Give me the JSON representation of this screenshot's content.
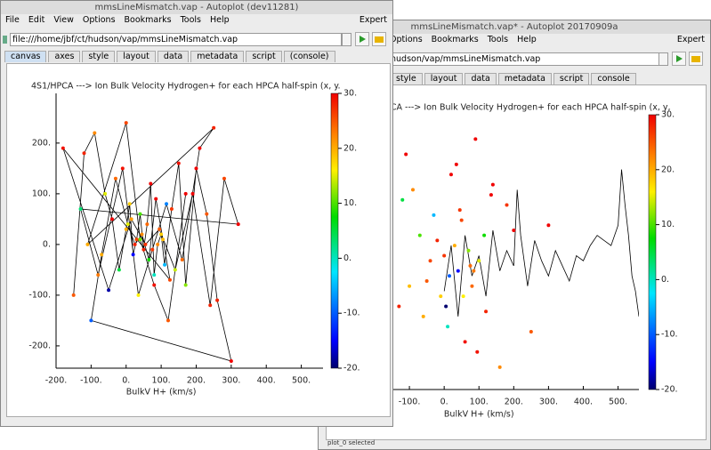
{
  "windows": [
    {
      "title": "mmsLineMismatch.vap* - Autoplot 20170909a",
      "menus": [
        "Options",
        "Bookmarks",
        "Tools",
        "Help"
      ],
      "expert": "Expert",
      "url": "hudson/vap/mmsLineMismatch.vap",
      "tabs": [
        "style",
        "layout",
        "data",
        "metadata",
        "script",
        "console"
      ],
      "status": "plot_0 selected"
    },
    {
      "title": "mmsLineMismatch.vap - Autoplot (dev11281)",
      "menus": [
        "File",
        "Edit",
        "View",
        "Options",
        "Bookmarks",
        "Tools",
        "Help"
      ],
      "expert": "Expert",
      "url": "file:///home/jbf/ct/hudson/vap/mmsLineMismatch.vap",
      "tabs": [
        "canvas",
        "axes",
        "style",
        "layout",
        "data",
        "metadata",
        "script",
        "(console)"
      ]
    }
  ],
  "chart_data": [
    {
      "type": "scatter",
      "connect": false,
      "title": "HPCA  ---> Ion Bulk Velocity Hydrogen+ for each HPCA half-spin (x, y,",
      "xlabel": "BulkV H+ (km/s)",
      "x": [
        -130,
        -110,
        -90,
        -70,
        -50,
        -30,
        -10,
        0,
        10,
        20,
        30,
        40,
        50,
        60,
        70,
        80,
        90,
        100,
        120,
        140,
        160,
        180,
        200,
        250,
        300,
        -120,
        -60,
        -20,
        15,
        35,
        55,
        75,
        95,
        115,
        135,
        -100,
        -40,
        5,
        45,
        85
      ],
      "values": [
        -80,
        220,
        150,
        60,
        -30,
        100,
        -60,
        20,
        -120,
        180,
        40,
        -10,
        90,
        -150,
        30,
        -40,
        250,
        10,
        -90,
        160,
        -200,
        120,
        70,
        -130,
        80,
        130,
        -100,
        50,
        -20,
        200,
        -60,
        0,
        -170,
        60,
        140,
        -40,
        10,
        -80,
        110,
        -10
      ],
      "z": [
        28,
        30,
        22,
        10,
        25,
        -5,
        18,
        27,
        0,
        30,
        20,
        -15,
        26,
        29,
        12,
        24,
        30,
        15,
        28,
        30,
        22,
        27,
        30,
        25,
        30,
        5,
        20,
        28,
        -10,
        30,
        16,
        24,
        29,
        8,
        30,
        19,
        26,
        -20,
        27,
        23
      ],
      "line": {
        "x": [
          0,
          20,
          40,
          60,
          80,
          100,
          120,
          140,
          160,
          180,
          200,
          210,
          220,
          240,
          260,
          280,
          300,
          320,
          340,
          360,
          380,
          400,
          420,
          440,
          460,
          480,
          500,
          510,
          520,
          530,
          540,
          550,
          560
        ],
        "values": [
          -50,
          40,
          -100,
          60,
          -20,
          20,
          -60,
          70,
          -10,
          30,
          0,
          150,
          60,
          -40,
          50,
          10,
          -20,
          30,
          0,
          -30,
          20,
          10,
          40,
          60,
          50,
          40,
          80,
          190,
          120,
          60,
          -20,
          -50,
          -100
        ]
      },
      "xlim": [
        -200,
        560
      ],
      "ylim": [
        -244,
        298
      ],
      "zlim": [
        -20,
        30
      ],
      "xticks": [
        {
          "value": -100,
          "label": "-100."
        },
        {
          "value": 0,
          "label": "0."
        },
        {
          "value": 100,
          "label": "100."
        },
        {
          "value": 200,
          "label": "200."
        },
        {
          "value": 300,
          "label": "300."
        },
        {
          "value": 400,
          "label": "400."
        },
        {
          "value": 500,
          "label": "500."
        }
      ],
      "zticks": [
        {
          "value": 30,
          "label": "30."
        },
        {
          "value": 20,
          "label": "20."
        },
        {
          "value": 10,
          "label": "10."
        },
        {
          "value": 0,
          "label": "0."
        },
        {
          "value": -10,
          "label": "-10."
        },
        {
          "value": -20,
          "label": "-20."
        }
      ]
    },
    {
      "type": "scatter",
      "connect": true,
      "title": "4S1/HPCA  ---> Ion Bulk Velocity Hydrogen+ for each HPCA half-spin (x, y.",
      "xlabel": "BulkV H+ (km/s)",
      "x": [
        -150,
        -120,
        -90,
        -60,
        -40,
        -20,
        0,
        10,
        20,
        30,
        40,
        50,
        60,
        70,
        80,
        90,
        100,
        110,
        130,
        150,
        170,
        200,
        230,
        260,
        300,
        -100,
        -70,
        -30,
        5,
        25,
        45,
        65,
        85,
        105,
        125,
        -180,
        -50,
        15,
        55,
        95,
        140,
        190,
        240,
        280,
        320,
        -130,
        -80,
        -10,
        35,
        75,
        115,
        160,
        210,
        250,
        -110,
        0,
        40,
        80,
        120,
        170
      ],
      "values": [
        -100,
        180,
        220,
        100,
        50,
        -50,
        30,
        80,
        -20,
        10,
        60,
        -10,
        40,
        120,
        -60,
        0,
        20,
        -40,
        70,
        160,
        -80,
        150,
        60,
        -110,
        -230,
        -150,
        -20,
        130,
        40,
        0,
        20,
        -30,
        90,
        10,
        -70,
        190,
        -90,
        50,
        0,
        30,
        -50,
        100,
        -120,
        130,
        40,
        70,
        -60,
        150,
        -100,
        -10,
        80,
        -30,
        190,
        230,
        0,
        240,
        10,
        -80,
        -150,
        100
      ],
      "z": [
        25,
        28,
        22,
        15,
        30,
        5,
        20,
        18,
        -15,
        26,
        10,
        28,
        24,
        30,
        0,
        22,
        18,
        -5,
        27,
        29,
        12,
        30,
        25,
        28,
        30,
        -10,
        20,
        24,
        15,
        28,
        22,
        8,
        30,
        19,
        26,
        29,
        -18,
        21,
        27,
        25,
        14,
        30,
        28,
        26,
        30,
        3,
        23,
        29,
        16,
        27,
        -8,
        24,
        30,
        28,
        20,
        26,
        11,
        29,
        25,
        30
      ],
      "xlim": [
        -200,
        562
      ],
      "ylim": [
        -244,
        298
      ],
      "zlim": [
        -20,
        30
      ],
      "xticks": [
        {
          "value": -200,
          "label": "-200."
        },
        {
          "value": -100,
          "label": "-100."
        },
        {
          "value": 0,
          "label": "0."
        },
        {
          "value": 100,
          "label": "100."
        },
        {
          "value": 200,
          "label": "200."
        },
        {
          "value": 300,
          "label": "300."
        },
        {
          "value": 400,
          "label": "400."
        },
        {
          "value": 500,
          "label": "500."
        }
      ],
      "yticks": [
        {
          "value": 200,
          "label": "200."
        },
        {
          "value": 100,
          "label": "100."
        },
        {
          "value": 0,
          "label": "0."
        },
        {
          "value": -100,
          "label": "-100."
        },
        {
          "value": -200,
          "label": "-200."
        }
      ],
      "zticks": [
        {
          "value": 30,
          "label": "30."
        },
        {
          "value": 20,
          "label": "20."
        },
        {
          "value": 10,
          "label": "10."
        },
        {
          "value": 0,
          "label": "0."
        },
        {
          "value": -10,
          "label": "-10."
        },
        {
          "value": -20,
          "label": "-20."
        }
      ]
    }
  ]
}
